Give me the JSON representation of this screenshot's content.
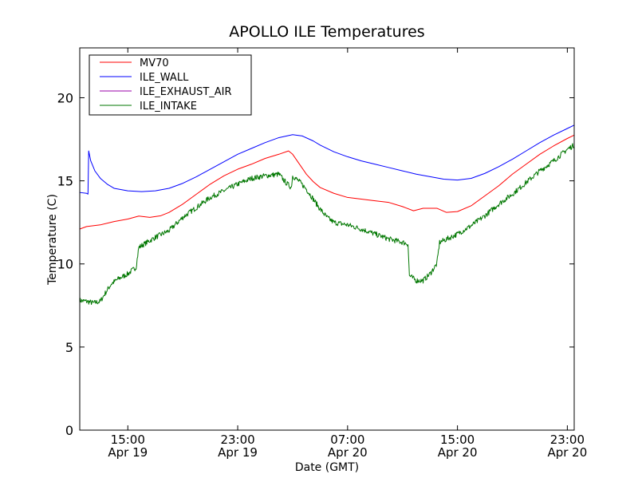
{
  "chart_data": {
    "type": "line",
    "title": "APOLLO ILE Temperatures",
    "xlabel": "Date (GMT)",
    "ylabel": "Temperature (C)",
    "x_unit": "hours since Apr 19 00:00 GMT",
    "xlim": [
      11.5,
      47.5
    ],
    "ylim": [
      0,
      23
    ],
    "x_ticks": [
      {
        "value": 15,
        "line1": "15:00",
        "line2": "Apr 19"
      },
      {
        "value": 23,
        "line1": "23:00",
        "line2": "Apr 19"
      },
      {
        "value": 31,
        "line1": "07:00",
        "line2": "Apr 20"
      },
      {
        "value": 39,
        "line1": "15:00",
        "line2": "Apr 20"
      },
      {
        "value": 47,
        "line1": "23:00",
        "line2": "Apr 20"
      }
    ],
    "y_ticks": [
      0,
      5,
      10,
      15,
      20
    ],
    "legend_position": "top-left",
    "series": [
      {
        "name": "MV70",
        "color": "#ff0000",
        "noisy": false,
        "points": [
          [
            11.5,
            12.1
          ],
          [
            12.0,
            12.25
          ],
          [
            13.0,
            12.35
          ],
          [
            14.0,
            12.55
          ],
          [
            15.0,
            12.7
          ],
          [
            15.8,
            12.88
          ],
          [
            16.6,
            12.8
          ],
          [
            17.4,
            12.9
          ],
          [
            18.0,
            13.1
          ],
          [
            19.0,
            13.6
          ],
          [
            20.0,
            14.2
          ],
          [
            21.0,
            14.8
          ],
          [
            22.0,
            15.3
          ],
          [
            23.0,
            15.7
          ],
          [
            24.0,
            16.0
          ],
          [
            25.0,
            16.35
          ],
          [
            26.0,
            16.6
          ],
          [
            26.7,
            16.8
          ],
          [
            27.0,
            16.6
          ],
          [
            27.5,
            16.0
          ],
          [
            28.0,
            15.4
          ],
          [
            28.5,
            14.95
          ],
          [
            29.0,
            14.6
          ],
          [
            30.0,
            14.25
          ],
          [
            31.0,
            14.0
          ],
          [
            32.0,
            13.9
          ],
          [
            33.0,
            13.8
          ],
          [
            34.0,
            13.7
          ],
          [
            35.0,
            13.45
          ],
          [
            35.8,
            13.2
          ],
          [
            36.5,
            13.35
          ],
          [
            37.5,
            13.35
          ],
          [
            38.2,
            13.1
          ],
          [
            39.0,
            13.15
          ],
          [
            40.0,
            13.5
          ],
          [
            41.0,
            14.1
          ],
          [
            42.0,
            14.7
          ],
          [
            43.0,
            15.4
          ],
          [
            44.0,
            16.0
          ],
          [
            45.0,
            16.6
          ],
          [
            46.0,
            17.1
          ],
          [
            47.0,
            17.55
          ],
          [
            47.5,
            17.75
          ]
        ]
      },
      {
        "name": "ILE_WALL",
        "color": "#0000ff",
        "noisy": false,
        "points": [
          [
            11.5,
            14.3
          ],
          [
            12.0,
            14.25
          ],
          [
            12.1,
            14.2
          ],
          [
            12.15,
            16.8
          ],
          [
            12.3,
            16.2
          ],
          [
            12.6,
            15.6
          ],
          [
            13.0,
            15.15
          ],
          [
            13.5,
            14.8
          ],
          [
            14.0,
            14.55
          ],
          [
            15.0,
            14.4
          ],
          [
            16.0,
            14.35
          ],
          [
            17.0,
            14.4
          ],
          [
            18.0,
            14.55
          ],
          [
            19.0,
            14.85
          ],
          [
            20.0,
            15.25
          ],
          [
            21.0,
            15.7
          ],
          [
            22.0,
            16.15
          ],
          [
            23.0,
            16.6
          ],
          [
            24.0,
            16.95
          ],
          [
            25.0,
            17.3
          ],
          [
            26.0,
            17.6
          ],
          [
            27.0,
            17.78
          ],
          [
            27.7,
            17.7
          ],
          [
            28.5,
            17.4
          ],
          [
            29.0,
            17.15
          ],
          [
            30.0,
            16.75
          ],
          [
            31.0,
            16.45
          ],
          [
            32.0,
            16.2
          ],
          [
            33.0,
            16.0
          ],
          [
            34.0,
            15.8
          ],
          [
            35.0,
            15.6
          ],
          [
            36.0,
            15.4
          ],
          [
            37.0,
            15.25
          ],
          [
            38.0,
            15.1
          ],
          [
            39.0,
            15.05
          ],
          [
            40.0,
            15.15
          ],
          [
            41.0,
            15.45
          ],
          [
            42.0,
            15.85
          ],
          [
            43.0,
            16.3
          ],
          [
            44.0,
            16.8
          ],
          [
            45.0,
            17.3
          ],
          [
            46.0,
            17.75
          ],
          [
            47.0,
            18.15
          ],
          [
            47.5,
            18.35
          ]
        ]
      },
      {
        "name": "ILE_EXHAUST_AIR",
        "color": "#9900aa",
        "noisy": false,
        "points": []
      },
      {
        "name": "ILE_INTAKE",
        "color": "#007700",
        "noisy": true,
        "points": [
          [
            11.5,
            7.8
          ],
          [
            12.0,
            7.75
          ],
          [
            12.5,
            7.65
          ],
          [
            13.0,
            7.75
          ],
          [
            13.4,
            8.3
          ],
          [
            13.8,
            8.8
          ],
          [
            14.3,
            9.1
          ],
          [
            15.0,
            9.4
          ],
          [
            15.6,
            9.8
          ],
          [
            15.8,
            11.0
          ],
          [
            16.3,
            11.25
          ],
          [
            17.0,
            11.6
          ],
          [
            18.0,
            12.0
          ],
          [
            19.0,
            12.8
          ],
          [
            20.0,
            13.4
          ],
          [
            21.0,
            14.0
          ],
          [
            22.0,
            14.4
          ],
          [
            23.0,
            14.8
          ],
          [
            24.0,
            15.15
          ],
          [
            25.0,
            15.3
          ],
          [
            26.0,
            15.4
          ],
          [
            26.5,
            14.9
          ],
          [
            26.9,
            14.6
          ],
          [
            27.0,
            15.3
          ],
          [
            27.5,
            14.95
          ],
          [
            28.0,
            14.5
          ],
          [
            28.5,
            13.9
          ],
          [
            29.0,
            13.3
          ],
          [
            29.5,
            12.8
          ],
          [
            30.0,
            12.5
          ],
          [
            31.0,
            12.35
          ],
          [
            32.0,
            12.1
          ],
          [
            33.0,
            11.8
          ],
          [
            34.0,
            11.5
          ],
          [
            35.0,
            11.3
          ],
          [
            35.4,
            11.2
          ],
          [
            35.5,
            9.3
          ],
          [
            36.0,
            9.0
          ],
          [
            36.5,
            9.0
          ],
          [
            37.0,
            9.4
          ],
          [
            37.5,
            10.0
          ],
          [
            37.7,
            11.3
          ],
          [
            38.5,
            11.6
          ],
          [
            39.0,
            11.8
          ],
          [
            40.0,
            12.3
          ],
          [
            41.0,
            12.9
          ],
          [
            42.0,
            13.6
          ],
          [
            43.0,
            14.2
          ],
          [
            44.0,
            14.9
          ],
          [
            45.0,
            15.6
          ],
          [
            46.0,
            16.2
          ],
          [
            47.0,
            16.9
          ],
          [
            47.5,
            17.15
          ]
        ]
      }
    ]
  }
}
